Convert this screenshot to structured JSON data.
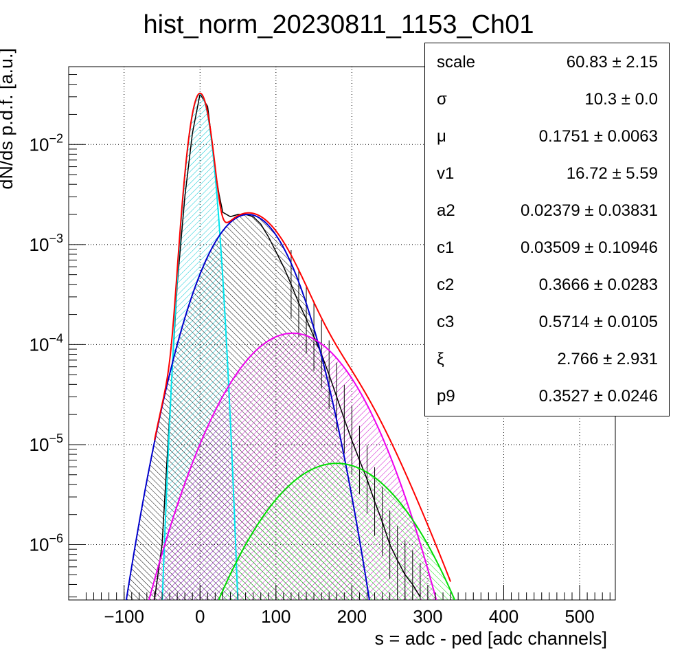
{
  "chart_data": {
    "type": "histogram",
    "title": "hist_norm_20230811_1153_Ch01",
    "xlabel": "s = adc - ped [adc channels]",
    "ylabel": "dN/ds p.d.f. [a.u.]",
    "xlim": [
      -173,
      547
    ],
    "ylim": [
      2.8e-07,
      0.06
    ],
    "yscale": "log",
    "grid": true,
    "x_ticks": [
      -100,
      0,
      100,
      200,
      300,
      400,
      500
    ],
    "y_ticks": [
      {
        "value": 1e-06,
        "label": "10",
        "exp": "−6"
      },
      {
        "value": 1e-05,
        "label": "10",
        "exp": "−5"
      },
      {
        "value": 0.0001,
        "label": "10",
        "exp": "−4"
      },
      {
        "value": 0.001,
        "label": "10",
        "exp": "−3"
      },
      {
        "value": 0.01,
        "label": "10",
        "exp": "−2"
      }
    ],
    "histogram": {
      "color": "#000000",
      "points": [
        [
          -60,
          2.8e-07
        ],
        [
          -50,
          1e-06
        ],
        [
          -40,
          2e-05
        ],
        [
          -30,
          0.0004
        ],
        [
          -20,
          0.003
        ],
        [
          -10,
          0.013
        ],
        [
          0,
          0.032
        ],
        [
          10,
          0.024
        ],
        [
          15,
          0.012
        ],
        [
          20,
          0.0055
        ],
        [
          25,
          0.0032
        ],
        [
          30,
          0.0021
        ],
        [
          40,
          0.0019
        ],
        [
          50,
          0.002
        ],
        [
          60,
          0.002
        ],
        [
          70,
          0.0019
        ],
        [
          80,
          0.0016
        ],
        [
          90,
          0.0012
        ],
        [
          100,
          0.00085
        ],
        [
          110,
          0.0006
        ],
        [
          120,
          0.0004
        ],
        [
          130,
          0.00026
        ],
        [
          140,
          0.00018
        ],
        [
          150,
          0.00012
        ],
        [
          160,
          8e-05
        ],
        [
          170,
          5e-05
        ],
        [
          180,
          3e-05
        ],
        [
          190,
          1.8e-05
        ],
        [
          200,
          1.1e-05
        ],
        [
          210,
          7e-06
        ],
        [
          220,
          4.5e-06
        ],
        [
          230,
          2.7e-06
        ],
        [
          240,
          1.7e-06
        ],
        [
          250,
          1e-06
        ],
        [
          260,
          7e-07
        ],
        [
          270,
          5e-07
        ],
        [
          280,
          4e-07
        ],
        [
          290,
          3e-07
        ]
      ]
    },
    "series": [
      {
        "color": "#00e5ee",
        "hatch": "#00c8d4",
        "mu": 0,
        "sigma": 10.3,
        "peak": 0.032
      },
      {
        "color": "#0000cc",
        "hatch": "#000000",
        "mu": 63,
        "sigma": 38,
        "peak": 0.002
      },
      {
        "color": "#ee00ee",
        "hatch": "#cc00cc",
        "mu": 122,
        "sigma": 54,
        "peak": 0.00013
      },
      {
        "color": "#00dd00",
        "hatch": "#00dd00",
        "mu": 180,
        "sigma": 62,
        "peak": 6.5e-06
      },
      {
        "color": "#ff0000",
        "role": "total"
      }
    ],
    "stats": [
      {
        "name": "scale",
        "value": "60.83 ± 2.15"
      },
      {
        "name": "σ",
        "value": "10.3 ± 0.0"
      },
      {
        "name": "μ",
        "value": "0.1751 ± 0.0063"
      },
      {
        "name": "v1",
        "value": "16.72 ± 5.59"
      },
      {
        "name": "a2",
        "value": "0.02379 ± 0.03831"
      },
      {
        "name": "c1",
        "value": "0.03509 ± 0.10946"
      },
      {
        "name": "c2",
        "value": "0.3666 ± 0.0283"
      },
      {
        "name": "c3",
        "value": "0.5714 ± 0.0105"
      },
      {
        "name": "ξ",
        "value": "2.766 ± 2.931"
      },
      {
        "name": "p9",
        "value": "0.3527 ± 0.0246"
      }
    ]
  }
}
